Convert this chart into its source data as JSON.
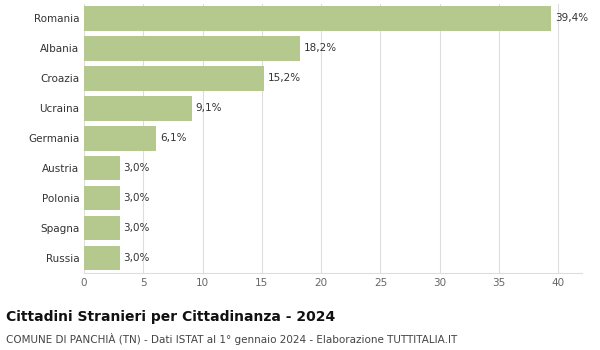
{
  "categories": [
    "Russia",
    "Spagna",
    "Polonia",
    "Austria",
    "Germania",
    "Ucraina",
    "Croazia",
    "Albania",
    "Romania"
  ],
  "values": [
    3.0,
    3.0,
    3.0,
    3.0,
    6.1,
    9.1,
    15.2,
    18.2,
    39.4
  ],
  "labels": [
    "3,0%",
    "3,0%",
    "3,0%",
    "3,0%",
    "6,1%",
    "9,1%",
    "15,2%",
    "18,2%",
    "39,4%"
  ],
  "bar_color": "#b5c98e",
  "background_color": "#ffffff",
  "title": "Cittadini Stranieri per Cittadinanza - 2024",
  "subtitle": "COMUNE DI PANCHIÀ (TN) - Dati ISTAT al 1° gennaio 2024 - Elaborazione TUTTITALIA.IT",
  "xlim": [
    0,
    42
  ],
  "xticks": [
    0,
    5,
    10,
    15,
    20,
    25,
    30,
    35,
    40
  ],
  "grid_color": "#dddddd",
  "title_fontsize": 10,
  "subtitle_fontsize": 7.5,
  "label_fontsize": 7.5,
  "tick_fontsize": 7.5,
  "bar_height": 0.82
}
